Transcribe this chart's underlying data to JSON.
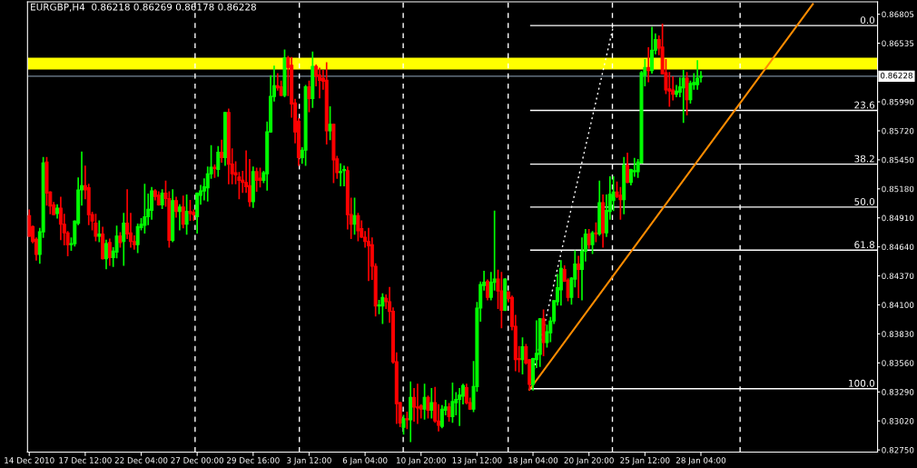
{
  "chart_data": {
    "type": "candlestick",
    "title": "EURGBP,H4  0.86218 0.86269 0.86178 0.86228",
    "categories": [
      "14 Dec 2010",
      null,
      null,
      null,
      null,
      null,
      null,
      null,
      null,
      null,
      null,
      null,
      null,
      null,
      null,
      null,
      "17 Dec 12:00",
      null,
      null,
      null,
      null,
      null,
      null,
      null,
      null,
      null,
      null,
      null,
      null,
      null,
      null,
      null,
      "22 Dec 04:00",
      null,
      null,
      null,
      null,
      null,
      null,
      null,
      null,
      null,
      null,
      null,
      null,
      null,
      null,
      null,
      "27 Dec 00:00",
      null,
      null,
      null,
      null,
      null,
      null,
      null,
      null,
      null,
      null,
      null,
      null,
      null,
      null,
      null,
      "29 Dec 16:00",
      null,
      null,
      null,
      null,
      null,
      null,
      null,
      null,
      null,
      null,
      null,
      null,
      null,
      null,
      null,
      "3 Jan 12:00",
      null,
      null,
      null,
      null,
      null,
      null,
      null,
      null,
      null,
      null,
      null,
      null,
      null,
      null,
      null,
      "6 Jan 04:00",
      null,
      null,
      null,
      null,
      null,
      null,
      null,
      null,
      null,
      null,
      null,
      null,
      null,
      null,
      null,
      "10 Jan 20:00",
      null,
      null,
      null,
      null,
      null,
      null,
      null,
      null,
      null,
      null,
      null,
      null,
      null,
      null,
      null,
      "13 Jan 12:00",
      null,
      null,
      null,
      null,
      null,
      null,
      null,
      null,
      null,
      null,
      null,
      null,
      null,
      null,
      null,
      "18 Jan 04:00",
      null,
      null,
      null,
      null,
      null,
      null,
      null,
      null,
      null,
      null,
      null,
      null,
      null,
      null,
      null,
      "20 Jan 20:00",
      null,
      null,
      null,
      null,
      null,
      null,
      null,
      null,
      null,
      null,
      null,
      null,
      null,
      null,
      null,
      "25 Jan 12:00",
      null,
      null,
      null,
      null,
      null,
      null,
      null,
      null,
      null,
      null,
      null,
      null,
      null,
      null,
      null,
      "28 Jan 04:00",
      null,
      null,
      null,
      null,
      null,
      null,
      null,
      null,
      null,
      null,
      null,
      null,
      null,
      null,
      null,
      null,
      null,
      null,
      null,
      null,
      null,
      null,
      null,
      null,
      null,
      null,
      null,
      null,
      null,
      null,
      null,
      null,
      null,
      null,
      null,
      null,
      null,
      null,
      null,
      null,
      null,
      null,
      null,
      null,
      null,
      null,
      null,
      null,
      null,
      null
    ],
    "ohlc": [
      [
        0.8493,
        0.8498,
        0.8474,
        0.8474
      ],
      [
        0.8483,
        0.8483,
        0.8468,
        0.8469
      ],
      [
        0.8471,
        0.8472,
        0.8452,
        0.8457
      ],
      [
        0.8457,
        0.8481,
        0.8449,
        0.8478
      ],
      [
        0.8478,
        0.8547,
        0.8473,
        0.8542
      ],
      [
        0.8543,
        0.8547,
        0.8503,
        0.8514
      ],
      [
        0.8515,
        0.8515,
        0.8495,
        0.8502
      ],
      [
        0.8503,
        0.8505,
        0.8494,
        0.8494
      ],
      [
        0.8495,
        0.8503,
        0.8491,
        0.85
      ],
      [
        0.85,
        0.851,
        0.8471,
        0.8485
      ],
      [
        0.8485,
        0.8494,
        0.8466,
        0.8477
      ],
      [
        0.8477,
        0.8478,
        0.8456,
        0.8466
      ],
      [
        0.8466,
        0.8472,
        0.8461,
        0.8467
      ],
      [
        0.8467,
        0.8488,
        0.8465,
        0.8488
      ],
      [
        0.8486,
        0.8528,
        0.8485,
        0.8517
      ],
      [
        0.8517,
        0.8552,
        0.8503,
        0.8521
      ],
      [
        0.8521,
        0.8539,
        0.8509,
        0.8517
      ],
      [
        0.8519,
        0.8522,
        0.8485,
        0.8494
      ],
      [
        0.8494,
        0.8496,
        0.848,
        0.8488
      ],
      [
        0.8486,
        0.8494,
        0.847,
        0.8474
      ],
      [
        0.8474,
        0.8488,
        0.8469,
        0.8476
      ],
      [
        0.8476,
        0.8482,
        0.8453,
        0.8453
      ],
      [
        0.8453,
        0.847,
        0.8444,
        0.8467
      ],
      [
        0.8468,
        0.8471,
        0.8447,
        0.8454
      ],
      [
        0.8454,
        0.8463,
        0.8446,
        0.846
      ],
      [
        0.8459,
        0.8483,
        0.8454,
        0.8474
      ],
      [
        0.8474,
        0.8477,
        0.8464,
        0.8468
      ],
      [
        0.8469,
        0.8495,
        0.8447,
        0.8486
      ],
      [
        0.8486,
        0.8517,
        0.8472,
        0.8476
      ],
      [
        0.8477,
        0.8495,
        0.8464,
        0.8469
      ],
      [
        0.8469,
        0.8474,
        0.8462,
        0.8466
      ],
      [
        0.8466,
        0.8485,
        0.8459,
        0.8483
      ],
      [
        0.8482,
        0.849,
        0.848,
        0.8485
      ],
      [
        0.8484,
        0.8522,
        0.8477,
        0.8492
      ],
      [
        0.8492,
        0.8513,
        0.8485,
        0.8499
      ],
      [
        0.8498,
        0.8519,
        0.849,
        0.8516
      ],
      [
        0.8516,
        0.8517,
        0.8508,
        0.8511
      ],
      [
        0.8512,
        0.8515,
        0.8503,
        0.8503
      ],
      [
        0.8503,
        0.8517,
        0.85,
        0.8514
      ],
      [
        0.8514,
        0.8525,
        0.8502,
        0.8509
      ],
      [
        0.8509,
        0.8515,
        0.8464,
        0.847
      ],
      [
        0.847,
        0.8517,
        0.8469,
        0.8507
      ],
      [
        0.8507,
        0.851,
        0.8492,
        0.8497
      ],
      [
        0.8497,
        0.8503,
        0.848,
        0.8501
      ],
      [
        0.8501,
        0.8511,
        0.8482,
        0.8485
      ],
      [
        0.8485,
        0.8512,
        0.8476,
        0.8497
      ],
      [
        0.8497,
        0.8507,
        0.8489,
        0.8495
      ],
      [
        0.8496,
        0.8498,
        0.8489,
        0.8494
      ],
      [
        0.8492,
        0.8514,
        0.8477,
        0.8514
      ],
      [
        0.8512,
        0.8521,
        0.8504,
        0.8516
      ],
      [
        0.8516,
        0.8527,
        0.8508,
        0.852
      ],
      [
        0.8519,
        0.8538,
        0.8507,
        0.8532
      ],
      [
        0.8532,
        0.8558,
        0.8528,
        0.8538
      ],
      [
        0.8538,
        0.854,
        0.8529,
        0.8537
      ],
      [
        0.8536,
        0.8557,
        0.853,
        0.8552
      ],
      [
        0.8552,
        0.8563,
        0.8543,
        0.8547
      ],
      [
        0.8547,
        0.8589,
        0.854,
        0.8589
      ],
      [
        0.8589,
        0.8592,
        0.8523,
        0.8541
      ],
      [
        0.8541,
        0.8555,
        0.8523,
        0.8532
      ],
      [
        0.8533,
        0.8543,
        0.8523,
        0.8531
      ],
      [
        0.8529,
        0.8533,
        0.8509,
        0.8526
      ],
      [
        0.8526,
        0.8534,
        0.8515,
        0.8524
      ],
      [
        0.8524,
        0.8553,
        0.8515,
        0.852
      ],
      [
        0.8521,
        0.8545,
        0.8502,
        0.8506
      ],
      [
        0.8506,
        0.8538,
        0.8501,
        0.8534
      ],
      [
        0.8534,
        0.8537,
        0.8516,
        0.8526
      ],
      [
        0.8528,
        0.8537,
        0.852,
        0.8526
      ],
      [
        0.8526,
        0.8534,
        0.8524,
        0.8533
      ],
      [
        0.8532,
        0.858,
        0.8517,
        0.8571
      ],
      [
        0.8571,
        0.8623,
        0.8571,
        0.8604
      ],
      [
        0.8604,
        0.8632,
        0.86,
        0.8614
      ],
      [
        0.8614,
        0.8625,
        0.861,
        0.8612
      ],
      [
        0.8613,
        0.8618,
        0.8605,
        0.8605
      ],
      [
        0.8605,
        0.8647,
        0.8604,
        0.864
      ],
      [
        0.864,
        0.8641,
        0.8605,
        0.8631
      ],
      [
        0.8633,
        0.864,
        0.8585,
        0.8597
      ],
      [
        0.8598,
        0.8601,
        0.8561,
        0.8571
      ],
      [
        0.8581,
        0.8583,
        0.854,
        0.8547
      ],
      [
        0.8547,
        0.8556,
        0.8542,
        0.8554
      ],
      [
        0.8554,
        0.8614,
        0.854,
        0.8613
      ],
      [
        0.8613,
        0.8618,
        0.859,
        0.8602
      ],
      [
        0.8602,
        0.8645,
        0.8594,
        0.8632
      ],
      [
        0.8632,
        0.8633,
        0.8614,
        0.8623
      ],
      [
        0.8624,
        0.863,
        0.8603,
        0.8619
      ],
      [
        0.8621,
        0.8628,
        0.8611,
        0.8618
      ],
      [
        0.8619,
        0.8635,
        0.856,
        0.8572
      ],
      [
        0.8572,
        0.8594,
        0.8564,
        0.8578
      ],
      [
        0.8578,
        0.8578,
        0.8524,
        0.8545
      ],
      [
        0.8546,
        0.8548,
        0.8528,
        0.8533
      ],
      [
        0.8533,
        0.8541,
        0.8521,
        0.8534
      ],
      [
        0.8535,
        0.8539,
        0.8521,
        0.8536
      ],
      [
        0.8535,
        0.8538,
        0.8481,
        0.8494
      ],
      [
        0.8494,
        0.8509,
        0.8472,
        0.8485
      ],
      [
        0.8485,
        0.8509,
        0.8476,
        0.8493
      ],
      [
        0.8493,
        0.8495,
        0.847,
        0.8479
      ],
      [
        0.8481,
        0.8488,
        0.8473,
        0.8473
      ],
      [
        0.8473,
        0.8478,
        0.8464,
        0.8469
      ],
      [
        0.8469,
        0.8481,
        0.8433,
        0.8465
      ],
      [
        0.8466,
        0.8472,
        0.8434,
        0.8446
      ],
      [
        0.8446,
        0.8448,
        0.84,
        0.8409
      ],
      [
        0.8409,
        0.8414,
        0.8402,
        0.841
      ],
      [
        0.8409,
        0.842,
        0.8393,
        0.8417
      ],
      [
        0.8416,
        0.8419,
        0.8407,
        0.8413
      ],
      [
        0.8413,
        0.8426,
        0.8394,
        0.8404
      ],
      [
        0.8404,
        0.8407,
        0.8356,
        0.8357
      ],
      [
        0.8357,
        0.8365,
        0.83,
        0.8318
      ],
      [
        0.8319,
        0.8319,
        0.8297,
        0.83
      ],
      [
        0.8296,
        0.8307,
        0.829,
        0.8304
      ],
      [
        0.8304,
        0.831,
        0.8295,
        0.8303
      ],
      [
        0.8303,
        0.8338,
        0.8283,
        0.8324
      ],
      [
        0.8324,
        0.8332,
        0.8302,
        0.8315
      ],
      [
        0.8315,
        0.8336,
        0.83,
        0.8314
      ],
      [
        0.8316,
        0.8317,
        0.8305,
        0.8313
      ],
      [
        0.8313,
        0.8336,
        0.8304,
        0.8324
      ],
      [
        0.8324,
        0.8325,
        0.8305,
        0.8312
      ],
      [
        0.8312,
        0.8332,
        0.8305,
        0.8319
      ],
      [
        0.8319,
        0.8333,
        0.8301,
        0.8302
      ],
      [
        0.8302,
        0.8317,
        0.8293,
        0.8298
      ],
      [
        0.8297,
        0.8316,
        0.8296,
        0.8313
      ],
      [
        0.8312,
        0.8321,
        0.8308,
        0.8315
      ],
      [
        0.8315,
        0.8318,
        0.8302,
        0.8306
      ],
      [
        0.8306,
        0.8337,
        0.8301,
        0.832
      ],
      [
        0.8319,
        0.8328,
        0.8308,
        0.8322
      ],
      [
        0.8322,
        0.8332,
        0.8298,
        0.8326
      ],
      [
        0.8325,
        0.8336,
        0.8318,
        0.8335
      ],
      [
        0.8333,
        0.8336,
        0.8318,
        0.8319
      ],
      [
        0.8319,
        0.8323,
        0.8313,
        0.8313
      ],
      [
        0.8313,
        0.8357,
        0.8311,
        0.8334
      ],
      [
        0.8334,
        0.8412,
        0.833,
        0.8407
      ],
      [
        0.8407,
        0.8431,
        0.8395,
        0.8429
      ],
      [
        0.8428,
        0.8441,
        0.8424,
        0.8431
      ],
      [
        0.8432,
        0.8433,
        0.8415,
        0.8417
      ],
      [
        0.8417,
        0.844,
        0.8415,
        0.8431
      ],
      [
        0.8431,
        0.8497,
        0.8424,
        0.8434
      ],
      [
        0.8434,
        0.8442,
        0.8407,
        0.8423
      ],
      [
        0.8423,
        0.844,
        0.8389,
        0.8405
      ],
      [
        0.8405,
        0.8434,
        0.8405,
        0.8434
      ],
      [
        0.8422,
        0.8422,
        0.8413,
        0.8416
      ],
      [
        0.8417,
        0.8418,
        0.8387,
        0.839
      ],
      [
        0.839,
        0.84,
        0.8349,
        0.8359
      ],
      [
        0.836,
        0.8371,
        0.8348,
        0.8359
      ],
      [
        0.8359,
        0.8379,
        0.8346,
        0.8371
      ],
      [
        0.8371,
        0.8373,
        0.8355,
        0.8356
      ],
      [
        0.8359,
        0.8359,
        0.8331,
        0.8336
      ],
      [
        0.8336,
        0.836,
        0.8331,
        0.836
      ],
      [
        0.8359,
        0.8395,
        0.8352,
        0.8365
      ],
      [
        0.8364,
        0.8397,
        0.8353,
        0.8397
      ],
      [
        0.8397,
        0.8405,
        0.8363,
        0.8375
      ],
      [
        0.8375,
        0.8391,
        0.8371,
        0.8385
      ],
      [
        0.8384,
        0.8398,
        0.8376,
        0.8395
      ],
      [
        0.8395,
        0.8414,
        0.8393,
        0.8414
      ],
      [
        0.8413,
        0.8438,
        0.841,
        0.8426
      ],
      [
        0.8424,
        0.8451,
        0.841,
        0.8444
      ],
      [
        0.8443,
        0.8446,
        0.8432,
        0.8432
      ],
      [
        0.8433,
        0.8434,
        0.8414,
        0.8417
      ],
      [
        0.8417,
        0.8435,
        0.8411,
        0.8435
      ],
      [
        0.8434,
        0.846,
        0.8427,
        0.8448
      ],
      [
        0.8448,
        0.8455,
        0.8417,
        0.8443
      ],
      [
        0.8443,
        0.8472,
        0.8415,
        0.846
      ],
      [
        0.846,
        0.848,
        0.8451,
        0.8476
      ],
      [
        0.8476,
        0.848,
        0.8463,
        0.8466
      ],
      [
        0.8466,
        0.8478,
        0.8458,
        0.8477
      ],
      [
        0.8477,
        0.8486,
        0.8469,
        0.8476
      ],
      [
        0.8476,
        0.8525,
        0.8475,
        0.8505
      ],
      [
        0.8505,
        0.8512,
        0.8464,
        0.8477
      ],
      [
        0.8477,
        0.8512,
        0.8474,
        0.8498
      ],
      [
        0.8497,
        0.8529,
        0.849,
        0.8513
      ],
      [
        0.8507,
        0.8529,
        0.8498,
        0.8515
      ],
      [
        0.8515,
        0.8524,
        0.851,
        0.8511
      ],
      [
        0.8512,
        0.8519,
        0.849,
        0.8508
      ],
      [
        0.8508,
        0.8547,
        0.8495,
        0.854
      ],
      [
        0.854,
        0.8551,
        0.8524,
        0.8524
      ],
      [
        0.8524,
        0.8536,
        0.8522,
        0.8536
      ],
      [
        0.8534,
        0.8546,
        0.853,
        0.8535
      ],
      [
        0.8534,
        0.8545,
        0.8529,
        0.8543
      ],
      [
        0.8542,
        0.8627,
        0.8542,
        0.8626
      ],
      [
        0.8624,
        0.8638,
        0.8614,
        0.8631
      ],
      [
        0.8631,
        0.8649,
        0.8618,
        0.8628
      ],
      [
        0.8628,
        0.8668,
        0.8626,
        0.8647
      ],
      [
        0.8647,
        0.8662,
        0.8644,
        0.8657
      ],
      [
        0.8657,
        0.866,
        0.8643,
        0.8649
      ],
      [
        0.865,
        0.8671,
        0.8625,
        0.8625
      ],
      [
        0.8626,
        0.8638,
        0.8607,
        0.861
      ],
      [
        0.8611,
        0.8626,
        0.8595,
        0.8609
      ],
      [
        0.861,
        0.8622,
        0.8601,
        0.8606
      ],
      [
        0.8606,
        0.8614,
        0.8604,
        0.8609
      ],
      [
        0.8608,
        0.8621,
        0.8604,
        0.8613
      ],
      [
        0.8612,
        0.8628,
        0.858,
        0.8621
      ],
      [
        0.8621,
        0.8626,
        0.8587,
        0.8601
      ],
      [
        0.8601,
        0.8618,
        0.8598,
        0.8616
      ],
      [
        0.8615,
        0.8625,
        0.8611,
        0.8617
      ],
      [
        0.8615,
        0.8637,
        0.8611,
        0.8621
      ],
      [
        0.86218,
        0.86269,
        0.86178,
        0.86228
      ],
      null,
      null,
      null,
      null,
      null,
      null,
      null,
      null,
      null,
      null,
      null,
      null,
      null,
      null,
      null,
      null,
      null,
      null,
      null,
      null,
      null,
      null,
      null,
      null,
      null,
      null,
      null,
      null,
      null,
      null,
      null,
      null,
      null,
      null,
      null,
      null,
      null,
      null,
      null,
      null,
      null,
      null,
      null,
      null,
      null,
      null,
      null,
      null,
      null,
      null
    ],
    "ylim": [
      0.8273,
      0.8692
    ],
    "yticks": [
      {
        "value": 0.86805,
        "label": "0.86805"
      },
      {
        "value": 0.86535,
        "label": "0.86535"
      },
      {
        "value": 0.8599,
        "label": "0.85990"
      },
      {
        "value": 0.8572,
        "label": "0.85720"
      },
      {
        "value": 0.8545,
        "label": "0.85450"
      },
      {
        "value": 0.8518,
        "label": "0.85180"
      },
      {
        "value": 0.8491,
        "label": "0.84910"
      },
      {
        "value": 0.8464,
        "label": "0.84640"
      },
      {
        "value": 0.8437,
        "label": "0.84370"
      },
      {
        "value": 0.841,
        "label": "0.84100"
      },
      {
        "value": 0.8383,
        "label": "0.83830"
      },
      {
        "value": 0.8356,
        "label": "0.83560"
      },
      {
        "value": 0.8329,
        "label": "0.83290"
      },
      {
        "value": 0.8302,
        "label": "0.83020"
      },
      {
        "value": 0.8275,
        "label": "0.82750"
      }
    ],
    "bands": [
      {
        "axis": "y",
        "from": 0.8629,
        "to": 0.864,
        "color": "#ffff00"
      }
    ],
    "ref_lines": [
      {
        "axis": "y",
        "value": 0.86228,
        "label": "0.86228",
        "color": "#778899",
        "line_style": "solid"
      },
      {
        "axis": "y",
        "value": 0.867,
        "color": "#ffffff",
        "line_style": "solid"
      },
      {
        "axis": "y",
        "value": 0.8591,
        "color": "#ffffff",
        "line_style": "solid"
      },
      {
        "axis": "y",
        "value": 0.8541,
        "color": "#ffffff",
        "line_style": "solid"
      },
      {
        "axis": "y",
        "value": 0.8501,
        "color": "#ffffff",
        "line_style": "solid"
      },
      {
        "axis": "y",
        "value": 0.8461,
        "color": "#ffffff",
        "line_style": "solid"
      },
      {
        "axis": "y",
        "value": 0.8332,
        "color": "#ffffff",
        "line_style": "solid"
      }
    ],
    "annotations": [
      {
        "text": "0.0",
        "y": 0.867
      },
      {
        "text": "23.6",
        "y": 0.8591
      },
      {
        "text": "38.2",
        "y": 0.8541
      },
      {
        "text": "50.0",
        "y": 0.8501
      },
      {
        "text": "61.8",
        "y": 0.8461
      },
      {
        "text": "100.0",
        "y": 0.8332
      }
    ],
    "series": [
      {
        "type": "line",
        "color": "#ff8c00",
        "line_style": "solid",
        "values": [
          null,
          null,
          null,
          null,
          null,
          null,
          null,
          null,
          null,
          null,
          null,
          null,
          null,
          null,
          null,
          null,
          null,
          null,
          null,
          null,
          null,
          null,
          null,
          null,
          null,
          null,
          null,
          null,
          null,
          null,
          null,
          null,
          null,
          null,
          null,
          null,
          null,
          null,
          null,
          null,
          null,
          null,
          null,
          null,
          null,
          null,
          null,
          null,
          null,
          null,
          null,
          null,
          null,
          null,
          null,
          null,
          null,
          null,
          null,
          null,
          null,
          null,
          null,
          null,
          null,
          null,
          null,
          null,
          null,
          null,
          null,
          null,
          null,
          null,
          null,
          null,
          null,
          null,
          null,
          null,
          null,
          null,
          null,
          null,
          null,
          null,
          null,
          null,
          null,
          null,
          null,
          null,
          null,
          null,
          null,
          null,
          null,
          null,
          null,
          null,
          null,
          null,
          null,
          null,
          null,
          null,
          null,
          null,
          null,
          null,
          null,
          null,
          null,
          null,
          null,
          null,
          null,
          null,
          null,
          null,
          null,
          null,
          null,
          null,
          null,
          null,
          null,
          null,
          null,
          null,
          null,
          null,
          null,
          null,
          null,
          null,
          null,
          null,
          null,
          null,
          null,
          null,
          null,
          0.8331,
          null,
          null,
          null,
          null,
          null,
          null,
          null,
          null,
          null,
          null,
          null,
          null,
          null,
          null,
          null,
          null,
          null,
          null,
          null,
          null,
          null,
          null,
          null,
          null,
          null,
          null,
          null,
          null,
          null,
          null,
          null,
          null,
          null,
          null,
          null,
          null,
          null,
          null,
          null,
          null,
          null,
          null,
          null,
          null,
          null,
          null,
          null,
          null,
          null,
          null,
          null,
          null,
          null,
          null,
          null,
          null,
          null,
          null,
          null,
          null,
          null,
          null,
          null,
          null,
          null,
          null,
          null,
          null,
          null,
          null,
          null,
          null,
          null,
          null,
          null,
          null,
          null,
          null,
          null,
          null,
          0.869,
          null,
          null,
          null,
          null,
          null,
          null,
          null,
          null,
          null,
          null,
          null,
          null,
          null,
          null,
          null,
          null,
          null,
          null
        ]
      },
      {
        "type": "line",
        "color": "#ffffff",
        "line_style": "dotted",
        "values": [
          null,
          null,
          null,
          null,
          null,
          null,
          null,
          null,
          null,
          null,
          null,
          null,
          null,
          null,
          null,
          null,
          null,
          null,
          null,
          null,
          null,
          null,
          null,
          null,
          null,
          null,
          null,
          null,
          null,
          null,
          null,
          null,
          null,
          null,
          null,
          null,
          null,
          null,
          null,
          null,
          null,
          null,
          null,
          null,
          null,
          null,
          null,
          null,
          null,
          null,
          null,
          null,
          null,
          null,
          null,
          null,
          null,
          null,
          null,
          null,
          null,
          null,
          null,
          null,
          null,
          null,
          null,
          null,
          null,
          null,
          null,
          null,
          null,
          null,
          null,
          null,
          null,
          null,
          null,
          null,
          null,
          null,
          null,
          null,
          null,
          null,
          null,
          null,
          null,
          null,
          null,
          null,
          null,
          null,
          null,
          null,
          null,
          null,
          null,
          null,
          null,
          null,
          null,
          null,
          null,
          null,
          null,
          null,
          null,
          null,
          null,
          null,
          null,
          null,
          null,
          null,
          null,
          null,
          null,
          null,
          null,
          null,
          null,
          null,
          null,
          null,
          null,
          null,
          null,
          null,
          null,
          null,
          null,
          null,
          null,
          null,
          null,
          null,
          null,
          null,
          null,
          null,
          null,
          0.8331,
          null,
          null,
          null,
          null,
          null,
          null,
          null,
          null,
          null,
          null,
          null,
          null,
          null,
          null,
          null,
          null,
          null,
          null,
          null,
          null,
          null,
          null,
          null,
          0.867,
          null,
          null,
          null,
          null,
          null,
          null,
          null,
          null,
          null,
          null,
          null,
          null,
          null,
          null,
          null,
          null,
          null,
          null,
          null,
          null,
          null,
          null,
          null,
          null,
          null,
          null,
          null,
          null,
          null,
          null,
          null,
          null,
          null,
          null,
          null,
          null,
          null,
          null,
          null,
          null,
          null,
          null,
          null,
          null,
          null,
          null,
          null,
          null,
          null,
          null,
          null,
          null,
          null,
          null,
          null,
          null,
          null,
          null,
          null,
          null,
          null,
          null,
          null,
          null,
          null,
          null,
          null,
          null,
          null,
          null,
          null,
          null,
          null,
          null,
          null
        ]
      }
    ],
    "grid": false
  }
}
